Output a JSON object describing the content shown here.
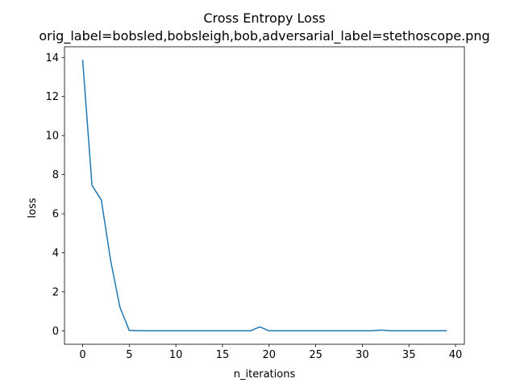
{
  "chart_data": {
    "type": "line",
    "title": "Cross Entropy Loss",
    "subtitle": "orig_label=bobsled,bobsleigh,bob,adversarial_label=stethoscope.png",
    "xlabel": "n_iterations",
    "ylabel": "loss",
    "xlim": [
      -1.95,
      40.95
    ],
    "ylim": [
      -0.69,
      14.55
    ],
    "xticks": [
      0,
      5,
      10,
      15,
      20,
      25,
      30,
      35,
      40
    ],
    "yticks": [
      0,
      2,
      4,
      6,
      8,
      10,
      12,
      14
    ],
    "grid": false,
    "series": [
      {
        "color": "#1f77b4",
        "x": [
          0,
          1,
          2,
          3,
          4,
          5,
          6,
          7,
          8,
          9,
          10,
          11,
          12,
          13,
          14,
          15,
          16,
          17,
          18,
          19,
          20,
          21,
          22,
          23,
          24,
          25,
          26,
          27,
          28,
          29,
          30,
          31,
          32,
          33,
          34,
          35,
          36,
          37,
          38,
          39
        ],
        "values": [
          13.85,
          7.45,
          6.7,
          3.6,
          1.2,
          0.02,
          0.0,
          0.0,
          0.0,
          0.0,
          0.0,
          0.0,
          0.0,
          0.0,
          0.0,
          0.0,
          0.0,
          0.0,
          0.0,
          0.2,
          0.0,
          0.0,
          0.0,
          0.0,
          0.0,
          0.0,
          0.0,
          0.0,
          0.0,
          0.0,
          0.0,
          0.0,
          0.04,
          0.0,
          0.0,
          0.0,
          0.0,
          0.0,
          0.0,
          0.0
        ]
      }
    ]
  }
}
